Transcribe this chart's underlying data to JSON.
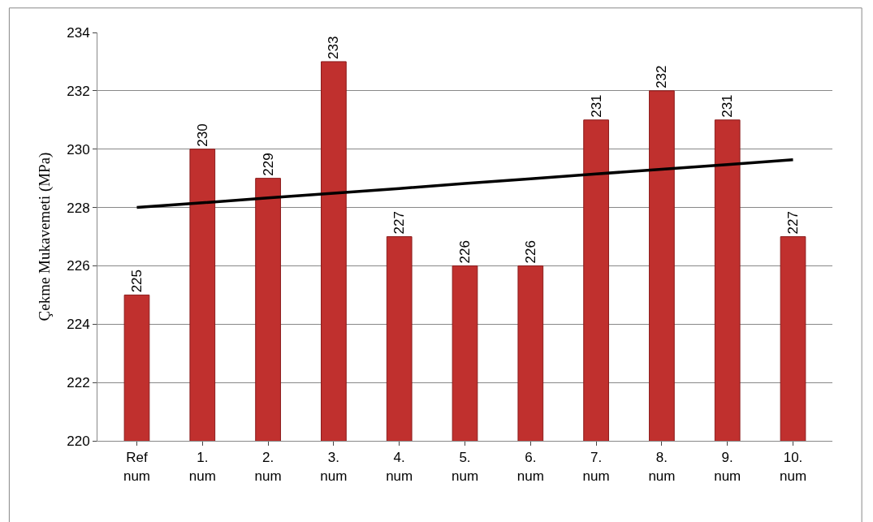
{
  "chart_data": {
    "type": "bar",
    "ylabel": "Çekme Mukavemeti (MPa)",
    "categories": [
      "Ref\nnum",
      "1.\nnum",
      "2.\nnum",
      "3.\nnum",
      "4.\nnum",
      "5.\nnum",
      "6.\nnum",
      "7.\nnum",
      "8.\nnum",
      "9.\nnum",
      "10.\nnum"
    ],
    "series": [
      {
        "color": "#c0302e",
        "values": [
          225,
          230,
          229,
          233,
          227,
          226,
          226,
          231,
          232,
          231,
          227
        ],
        "value_labels": [
          "225",
          "230",
          "229",
          "233",
          "227",
          "226",
          "226",
          "231",
          "232",
          "231",
          "227"
        ]
      },
      {
        "type": "line",
        "color": "#000000",
        "values": [
          228.0,
          228.16,
          228.33,
          228.49,
          228.65,
          228.82,
          228.98,
          229.15,
          229.31,
          229.47,
          229.64
        ]
      }
    ],
    "ylim": [
      220,
      234
    ],
    "yticks": [
      220,
      222,
      224,
      226,
      228,
      230,
      232,
      234
    ],
    "grid": "y",
    "legend": false,
    "marker": "none",
    "line_style": "solid"
  }
}
